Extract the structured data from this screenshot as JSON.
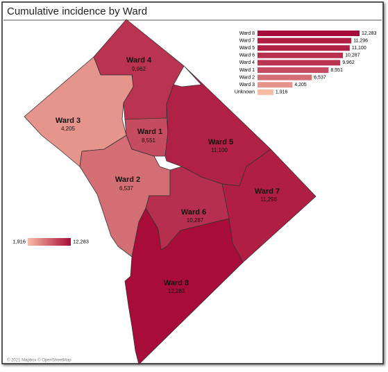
{
  "title": "Cumulative incidence by Ward",
  "map": {
    "regions": [
      {
        "name": "Ward 4",
        "value": 9962,
        "label": "9,962"
      },
      {
        "name": "Ward 3",
        "value": 4205,
        "label": "4,205"
      },
      {
        "name": "Ward 1",
        "value": 8551,
        "label": "8,551"
      },
      {
        "name": "Ward 5",
        "value": 11100,
        "label": "11,100"
      },
      {
        "name": "Ward 2",
        "value": 6537,
        "label": "6,537"
      },
      {
        "name": "Ward 6",
        "value": 10287,
        "label": "10,287"
      },
      {
        "name": "Ward 7",
        "value": 11296,
        "label": "11,296"
      },
      {
        "name": "Ward 8",
        "value": 12283,
        "label": "12,283"
      }
    ]
  },
  "chart_data": {
    "type": "bar",
    "orientation": "horizontal",
    "categories": [
      "Ward 8",
      "Ward 7",
      "Ward 5",
      "Ward 6",
      "Ward 4",
      "Ward 1",
      "Ward 2",
      "Ward 3",
      "Unknown"
    ],
    "values": [
      12283,
      11296,
      11100,
      10287,
      9962,
      8551,
      6537,
      4205,
      1916
    ],
    "value_labels": [
      "12,283",
      "11,296",
      "11,100",
      "10,287",
      "9,962",
      "8,551",
      "6,537",
      "4,205",
      "1,916"
    ]
  },
  "legend": {
    "min": {
      "value": 1916,
      "label": "1,916"
    },
    "max": {
      "value": 12283,
      "label": "12,283"
    },
    "colors": [
      "#f8bca4",
      "#a80d3a"
    ]
  },
  "attribution": "© 2021 Mapbox © OpenStreetMap"
}
